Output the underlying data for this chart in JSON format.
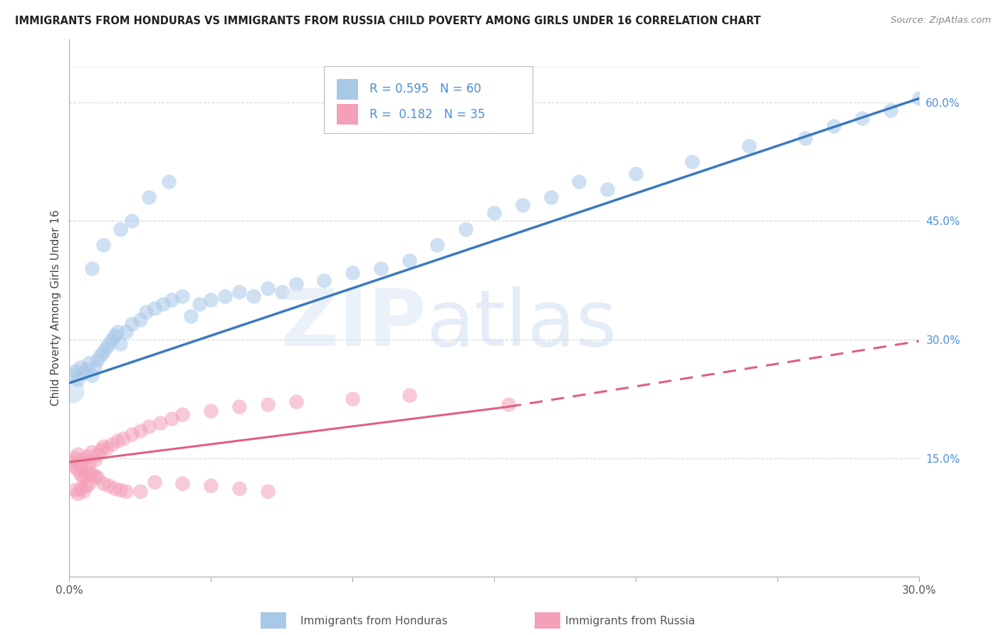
{
  "title": "IMMIGRANTS FROM HONDURAS VS IMMIGRANTS FROM RUSSIA CHILD POVERTY AMONG GIRLS UNDER 16 CORRELATION CHART",
  "source": "Source: ZipAtlas.com",
  "ylabel": "Child Poverty Among Girls Under 16",
  "xlim": [
    0.0,
    0.3
  ],
  "ylim": [
    0.0,
    0.68
  ],
  "y_ticks_right": [
    0.15,
    0.3,
    0.45,
    0.6
  ],
  "y_tick_labels_right": [
    "15.0%",
    "30.0%",
    "45.0%",
    "60.0%"
  ],
  "color_honduras": "#a8c8e8",
  "color_russia": "#f4a0b8",
  "color_trend_honduras": "#3a7abf",
  "color_trend_russia": "#e06080",
  "color_grid": "#cccccc",
  "color_text": "#4a90d9",
  "background_color": "#ffffff",
  "honduras_trend_x0": 0.0,
  "honduras_trend_y0": 0.245,
  "honduras_trend_x1": 0.3,
  "honduras_trend_y1": 0.605,
  "russia_trend_x0": 0.0,
  "russia_trend_y0": 0.145,
  "russia_trend_solid_end": 0.155,
  "russia_trend_y_solid_end": 0.215,
  "russia_trend_x1": 0.3,
  "russia_trend_y1": 0.298,
  "honduras_x": [
    0.001,
    0.002,
    0.003,
    0.004,
    0.005,
    0.006,
    0.007,
    0.008,
    0.009,
    0.01,
    0.011,
    0.012,
    0.013,
    0.014,
    0.015,
    0.016,
    0.017,
    0.018,
    0.02,
    0.022,
    0.025,
    0.027,
    0.03,
    0.033,
    0.036,
    0.04,
    0.043,
    0.046,
    0.05,
    0.055,
    0.06,
    0.065,
    0.07,
    0.075,
    0.08,
    0.09,
    0.1,
    0.11,
    0.12,
    0.13,
    0.14,
    0.15,
    0.16,
    0.17,
    0.18,
    0.19,
    0.2,
    0.22,
    0.24,
    0.008,
    0.012,
    0.018,
    0.022,
    0.028,
    0.035,
    0.26,
    0.27,
    0.28,
    0.29,
    0.3
  ],
  "honduras_y": [
    0.255,
    0.26,
    0.25,
    0.265,
    0.258,
    0.262,
    0.27,
    0.255,
    0.265,
    0.275,
    0.28,
    0.285,
    0.29,
    0.295,
    0.3,
    0.305,
    0.31,
    0.295,
    0.31,
    0.32,
    0.325,
    0.335,
    0.34,
    0.345,
    0.35,
    0.355,
    0.33,
    0.345,
    0.35,
    0.355,
    0.36,
    0.355,
    0.365,
    0.36,
    0.37,
    0.375,
    0.385,
    0.39,
    0.4,
    0.42,
    0.44,
    0.46,
    0.47,
    0.48,
    0.5,
    0.49,
    0.51,
    0.525,
    0.545,
    0.39,
    0.42,
    0.44,
    0.45,
    0.48,
    0.5,
    0.555,
    0.57,
    0.58,
    0.59,
    0.605
  ],
  "russia_x": [
    0.001,
    0.002,
    0.003,
    0.004,
    0.005,
    0.006,
    0.007,
    0.008,
    0.009,
    0.01,
    0.011,
    0.012,
    0.013,
    0.015,
    0.017,
    0.019,
    0.022,
    0.025,
    0.028,
    0.032,
    0.036,
    0.04,
    0.05,
    0.06,
    0.07,
    0.08,
    0.002,
    0.003,
    0.004,
    0.005,
    0.006,
    0.007,
    0.1,
    0.12,
    0.155
  ],
  "russia_y": [
    0.145,
    0.15,
    0.155,
    0.14,
    0.148,
    0.152,
    0.145,
    0.158,
    0.148,
    0.155,
    0.16,
    0.165,
    0.162,
    0.168,
    0.172,
    0.175,
    0.18,
    0.185,
    0.19,
    0.195,
    0.2,
    0.205,
    0.21,
    0.215,
    0.218,
    0.222,
    0.11,
    0.105,
    0.112,
    0.108,
    0.115,
    0.118,
    0.225,
    0.23,
    0.218
  ],
  "russia_extra_x": [
    0.002,
    0.003,
    0.004,
    0.005,
    0.006,
    0.007,
    0.008,
    0.009,
    0.01,
    0.012,
    0.014,
    0.016,
    0.018,
    0.02,
    0.025,
    0.03,
    0.04,
    0.05,
    0.06,
    0.07
  ],
  "russia_extra_y": [
    0.14,
    0.135,
    0.13,
    0.125,
    0.128,
    0.132,
    0.13,
    0.128,
    0.125,
    0.118,
    0.115,
    0.112,
    0.11,
    0.108,
    0.108,
    0.12,
    0.118,
    0.115,
    0.112,
    0.108
  ]
}
